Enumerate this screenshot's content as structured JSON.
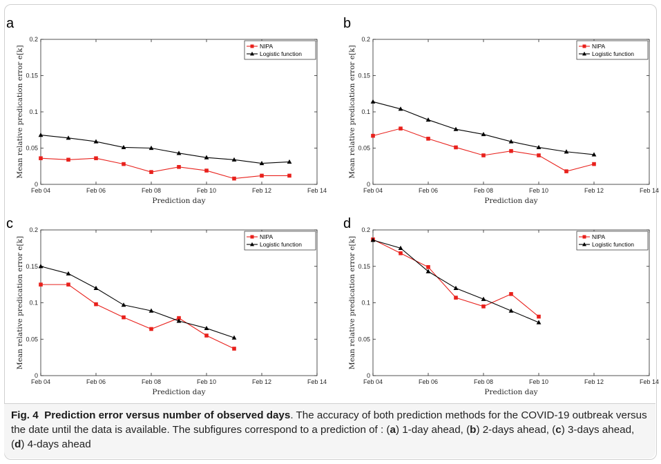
{
  "chart_data": [
    {
      "panel": "a",
      "type": "line",
      "x": [
        "Feb 04",
        "Feb 05",
        "Feb 06",
        "Feb 07",
        "Feb 08",
        "Feb 09",
        "Feb 10",
        "Feb 11",
        "Feb 12",
        "Feb 13"
      ],
      "series": [
        {
          "name": "NIPA",
          "values": [
            0.036,
            0.034,
            0.036,
            0.028,
            0.017,
            0.024,
            0.019,
            0.008,
            0.012,
            0.012
          ]
        },
        {
          "name": "Logistic function",
          "values": [
            0.068,
            0.064,
            0.059,
            0.051,
            0.05,
            0.043,
            0.037,
            0.034,
            0.029,
            0.031
          ]
        }
      ],
      "xticks": [
        "Feb 04",
        "Feb 06",
        "Feb 08",
        "Feb 10",
        "Feb 12",
        "Feb 14"
      ],
      "yticks": [
        "0",
        "0.05",
        "0.1",
        "0.15",
        "0.2"
      ],
      "xlabel": "Prediction day",
      "ylabel": "Mean relative predication error e[k]",
      "ylim": [
        0,
        0.2
      ],
      "xlim": [
        "Feb 04",
        "Feb 14"
      ],
      "legend": "top-right"
    },
    {
      "panel": "b",
      "type": "line",
      "x": [
        "Feb 04",
        "Feb 05",
        "Feb 06",
        "Feb 07",
        "Feb 08",
        "Feb 09",
        "Feb 10",
        "Feb 11",
        "Feb 12"
      ],
      "series": [
        {
          "name": "NIPA",
          "values": [
            0.067,
            0.077,
            0.063,
            0.051,
            0.04,
            0.046,
            0.04,
            0.018,
            0.028
          ]
        },
        {
          "name": "Logistic function",
          "values": [
            0.114,
            0.104,
            0.089,
            0.076,
            0.069,
            0.059,
            0.051,
            0.045,
            0.041
          ]
        }
      ],
      "xticks": [
        "Feb 04",
        "Feb 06",
        "Feb 08",
        "Feb 10",
        "Feb 12",
        "Feb 14"
      ],
      "yticks": [
        "0",
        "0.05",
        "0.1",
        "0.15",
        "0.2"
      ],
      "xlabel": "Prediction day",
      "ylabel": "Mean relative predication error e[k]",
      "ylim": [
        0,
        0.2
      ],
      "xlim": [
        "Feb 04",
        "Feb 14"
      ],
      "legend": "top-right"
    },
    {
      "panel": "c",
      "type": "line",
      "x": [
        "Feb 04",
        "Feb 05",
        "Feb 06",
        "Feb 07",
        "Feb 08",
        "Feb 09",
        "Feb 10",
        "Feb 11"
      ],
      "series": [
        {
          "name": "NIPA",
          "values": [
            0.125,
            0.125,
            0.098,
            0.08,
            0.064,
            0.079,
            0.055,
            0.037
          ]
        },
        {
          "name": "Logistic function",
          "values": [
            0.15,
            0.14,
            0.12,
            0.097,
            0.089,
            0.075,
            0.065,
            0.052
          ]
        }
      ],
      "xticks": [
        "Feb 04",
        "Feb 06",
        "Feb 08",
        "Feb 10",
        "Feb 12",
        "Feb 14"
      ],
      "yticks": [
        "0",
        "0.05",
        "0.1",
        "0.15",
        "0.2"
      ],
      "xlabel": "Prediction day",
      "ylabel": "Mean relative predication error e[k]",
      "ylim": [
        0,
        0.2
      ],
      "xlim": [
        "Feb 04",
        "Feb 14"
      ],
      "legend": "top-right"
    },
    {
      "panel": "d",
      "type": "line",
      "x": [
        "Feb 04",
        "Feb 05",
        "Feb 06",
        "Feb 07",
        "Feb 08",
        "Feb 09",
        "Feb 10"
      ],
      "series": [
        {
          "name": "NIPA",
          "values": [
            0.187,
            0.168,
            0.149,
            0.107,
            0.095,
            0.112,
            0.081
          ]
        },
        {
          "name": "Logistic function",
          "values": [
            0.186,
            0.175,
            0.143,
            0.12,
            0.105,
            0.089,
            0.073
          ]
        }
      ],
      "xticks": [
        "Feb 04",
        "Feb 06",
        "Feb 08",
        "Feb 10",
        "Feb 12",
        "Feb 14"
      ],
      "yticks": [
        "0",
        "0.05",
        "0.1",
        "0.15",
        "0.2"
      ],
      "xlabel": "Prediction day",
      "ylabel": "Mean relative predication error e[k]",
      "ylim": [
        0,
        0.2
      ],
      "xlim": [
        "Feb 04",
        "Feb 14"
      ],
      "legend": "top-right"
    }
  ],
  "colors": {
    "nipa": "#e8211c",
    "logistic": "#000000"
  },
  "markers": {
    "nipa": "square",
    "logistic": "triangle"
  },
  "caption": {
    "fig_no": "Fig. 4",
    "fig_title": "Prediction error versus number of observed days",
    "text1": ". The accuracy of both prediction methods for the COVID-19 outbreak versus the date until the data is available. The subfigures correspond to a prediction of : (",
    "la": "a",
    "t_a": ") 1-day ahead, (",
    "lb": "b",
    "t_b": ") 2-days ahead, (",
    "lc": "c",
    "t_c": ") 3-days ahead, (",
    "ld": "d",
    "t_d": ") 4-days ahead"
  }
}
